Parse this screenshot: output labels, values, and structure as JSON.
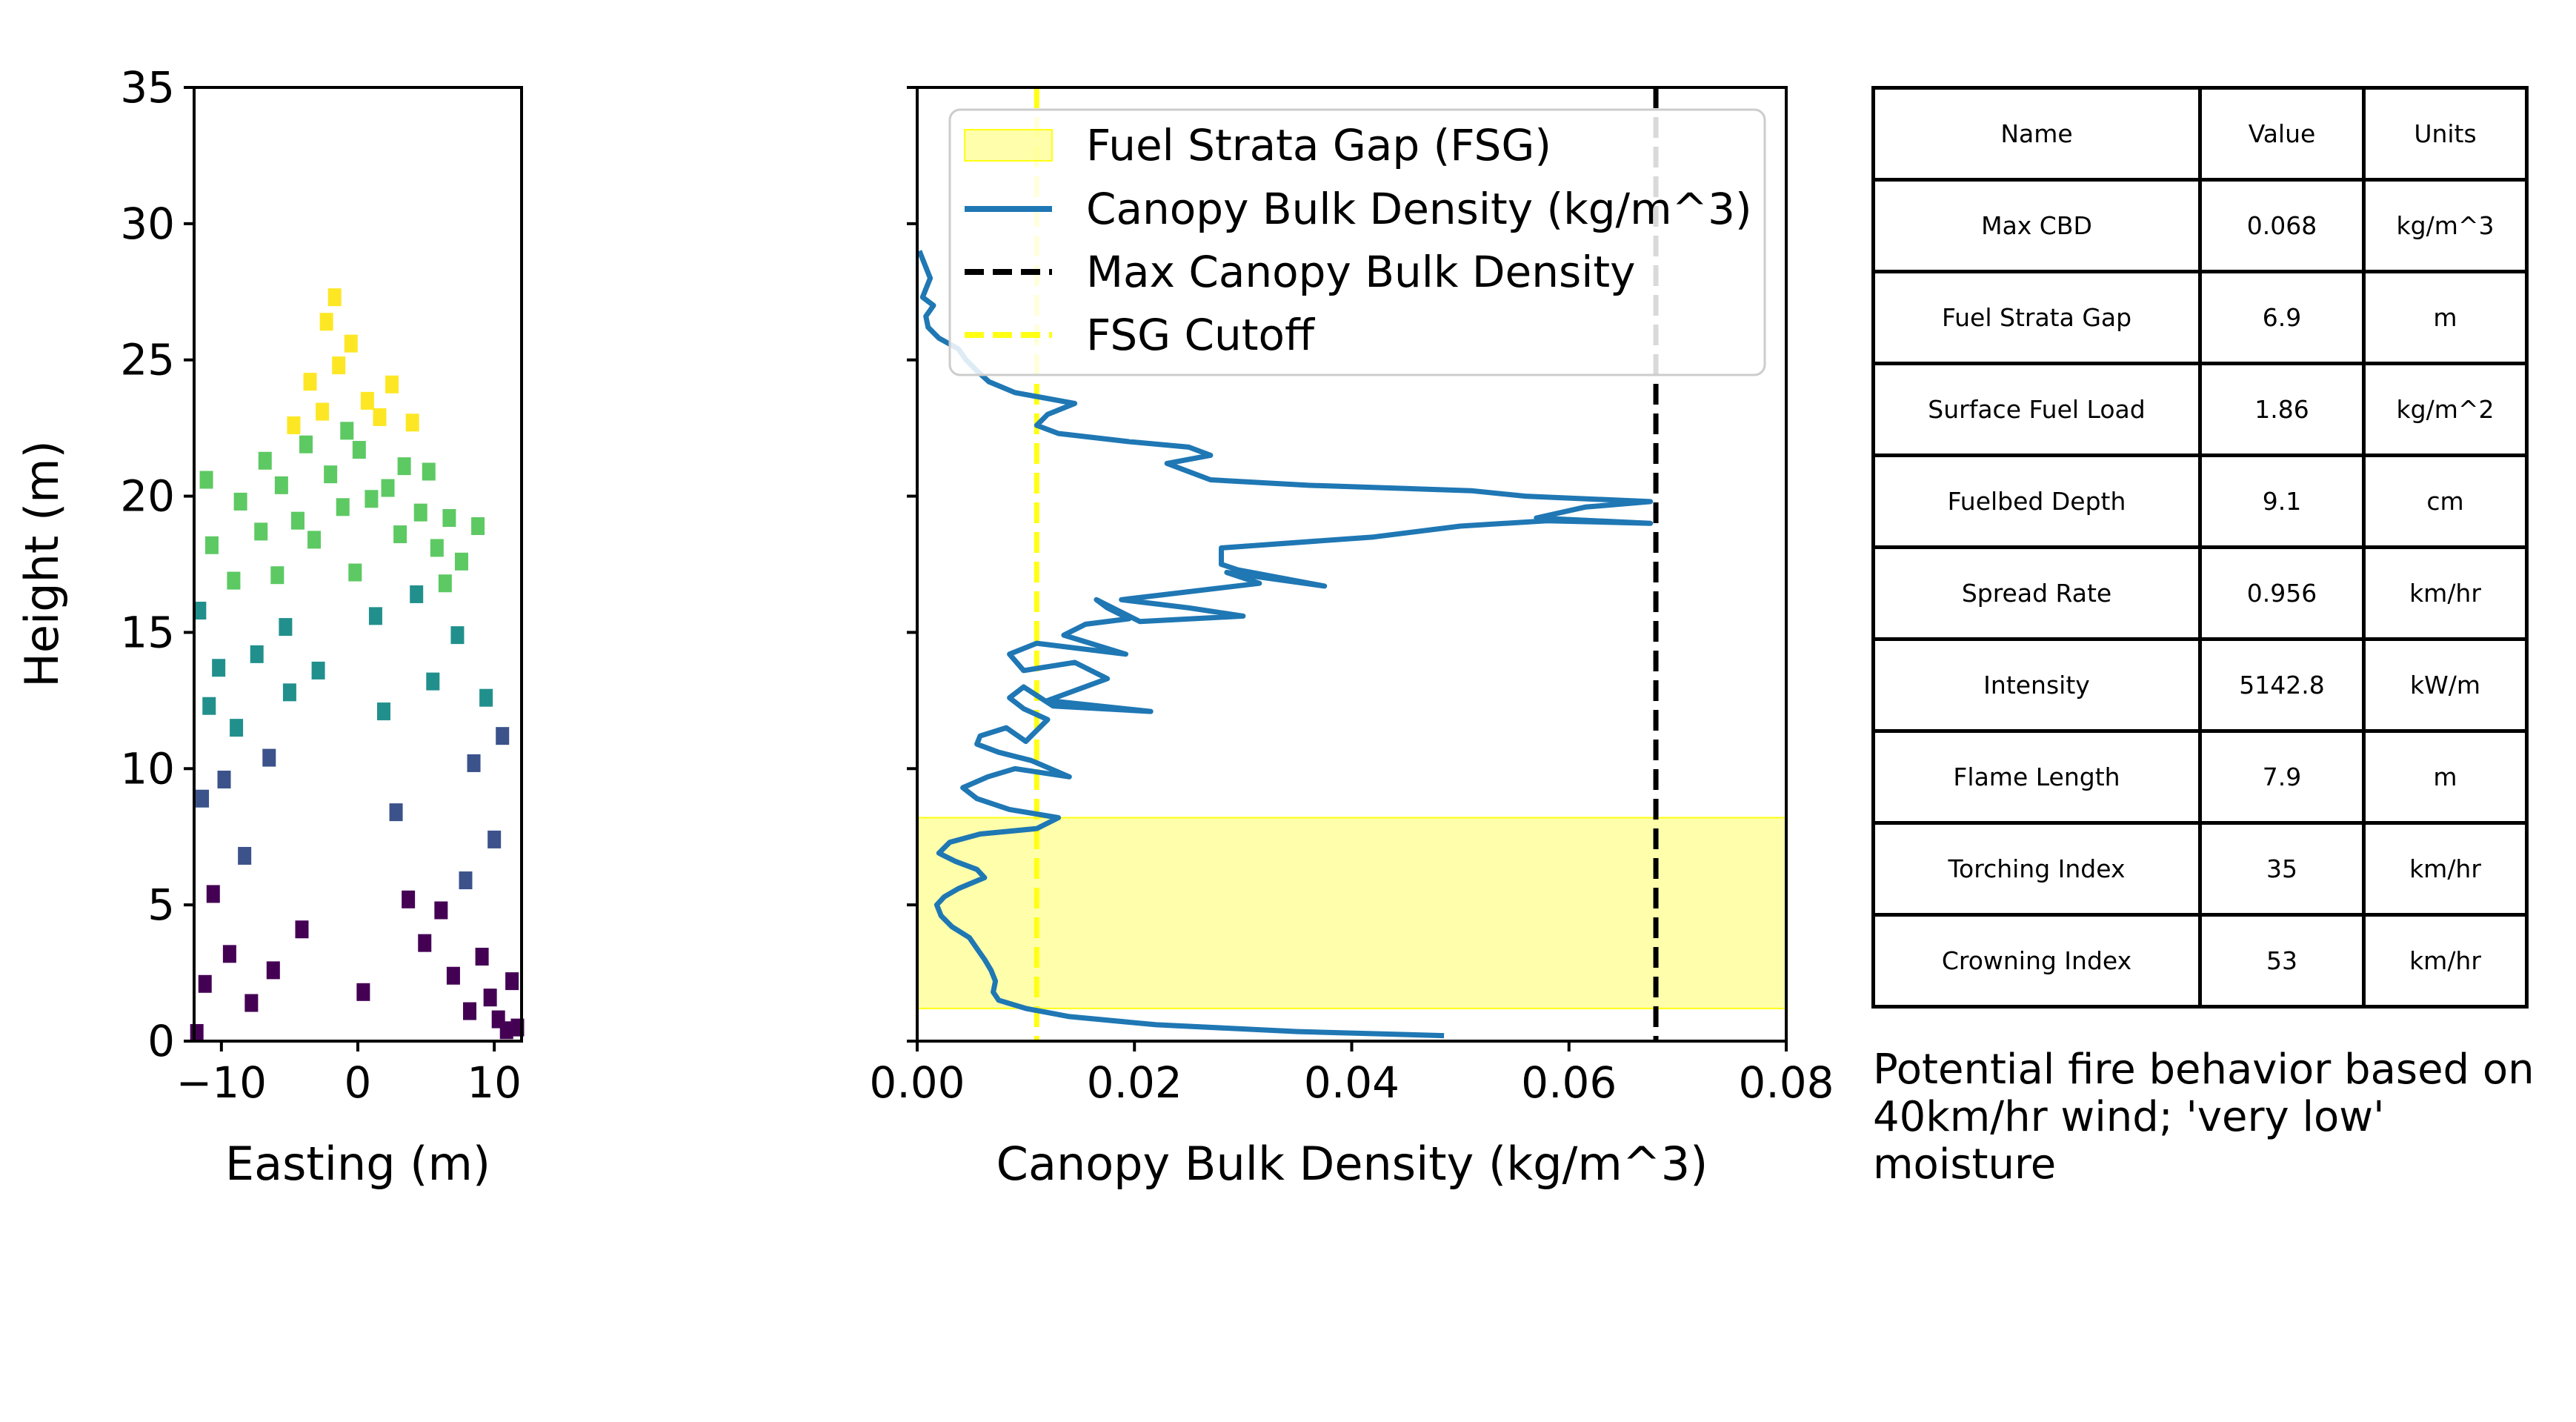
{
  "colors": {
    "cbd_line": "#1f77b4",
    "max_line": "#000000",
    "fsg_cutoff": "#ffff14",
    "fsg_fill": "#ffff66",
    "viridis": [
      "#440154",
      "#3b528b",
      "#21908d",
      "#5dc963",
      "#fde725"
    ]
  },
  "chart_data": [
    {
      "type": "scatter",
      "xlabel": "Easting (m)",
      "ylabel": "Height (m)",
      "xlim": [
        -12,
        12
      ],
      "ylim": [
        0,
        35
      ],
      "xticks": [
        -10,
        0,
        10
      ],
      "xtick_labels": [
        "−10",
        "0",
        "10"
      ],
      "yticks": [
        0,
        5,
        10,
        15,
        20,
        25,
        30,
        35
      ],
      "ytick_labels": [
        "0",
        "5",
        "10",
        "15",
        "20",
        "25",
        "30",
        "35"
      ],
      "colormap": "viridis",
      "color_by": "height",
      "points": [
        {
          "x": -11.8,
          "y": 0.3
        },
        {
          "x": -11.2,
          "y": 2.1
        },
        {
          "x": -10.6,
          "y": 5.4
        },
        {
          "x": -11.4,
          "y": 8.9
        },
        {
          "x": -10.9,
          "y": 12.3
        },
        {
          "x": -11.6,
          "y": 15.8
        },
        {
          "x": -10.7,
          "y": 18.2
        },
        {
          "x": -11.1,
          "y": 20.6
        },
        {
          "x": -10.2,
          "y": 13.7
        },
        {
          "x": -9.8,
          "y": 9.6
        },
        {
          "x": -9.4,
          "y": 3.2
        },
        {
          "x": -9.1,
          "y": 16.9
        },
        {
          "x": -8.6,
          "y": 19.8
        },
        {
          "x": -8.9,
          "y": 11.5
        },
        {
          "x": -8.3,
          "y": 6.8
        },
        {
          "x": -7.8,
          "y": 1.4
        },
        {
          "x": -7.4,
          "y": 14.2
        },
        {
          "x": -7.1,
          "y": 18.7
        },
        {
          "x": -6.8,
          "y": 21.3
        },
        {
          "x": -6.5,
          "y": 10.4
        },
        {
          "x": -6.2,
          "y": 2.6
        },
        {
          "x": -5.9,
          "y": 17.1
        },
        {
          "x": -5.6,
          "y": 20.4
        },
        {
          "x": -5.3,
          "y": 15.2
        },
        {
          "x": -5.0,
          "y": 12.8
        },
        {
          "x": -4.7,
          "y": 22.6
        },
        {
          "x": -4.4,
          "y": 19.1
        },
        {
          "x": -4.1,
          "y": 4.1
        },
        {
          "x": -3.8,
          "y": 21.9
        },
        {
          "x": -3.5,
          "y": 24.2
        },
        {
          "x": -3.2,
          "y": 18.4
        },
        {
          "x": -2.9,
          "y": 13.6
        },
        {
          "x": -2.6,
          "y": 23.1
        },
        {
          "x": -2.3,
          "y": 26.4
        },
        {
          "x": -2.0,
          "y": 20.8
        },
        {
          "x": -1.7,
          "y": 27.3
        },
        {
          "x": -1.4,
          "y": 24.8
        },
        {
          "x": -1.1,
          "y": 19.6
        },
        {
          "x": -0.8,
          "y": 22.4
        },
        {
          "x": -0.5,
          "y": 25.6
        },
        {
          "x": -0.2,
          "y": 17.2
        },
        {
          "x": 0.1,
          "y": 21.7
        },
        {
          "x": 0.4,
          "y": 1.8
        },
        {
          "x": 0.7,
          "y": 23.5
        },
        {
          "x": 1.0,
          "y": 19.9
        },
        {
          "x": 1.3,
          "y": 15.6
        },
        {
          "x": 1.6,
          "y": 22.9
        },
        {
          "x": 1.9,
          "y": 12.1
        },
        {
          "x": 2.2,
          "y": 20.3
        },
        {
          "x": 2.5,
          "y": 24.1
        },
        {
          "x": 2.8,
          "y": 8.4
        },
        {
          "x": 3.1,
          "y": 18.6
        },
        {
          "x": 3.4,
          "y": 21.1
        },
        {
          "x": 3.7,
          "y": 5.2
        },
        {
          "x": 4.0,
          "y": 22.7
        },
        {
          "x": 4.3,
          "y": 16.4
        },
        {
          "x": 4.6,
          "y": 19.4
        },
        {
          "x": 4.9,
          "y": 3.6
        },
        {
          "x": 5.2,
          "y": 20.9
        },
        {
          "x": 5.5,
          "y": 13.2
        },
        {
          "x": 5.8,
          "y": 18.1
        },
        {
          "x": 6.1,
          "y": 4.8
        },
        {
          "x": 6.4,
          "y": 16.8
        },
        {
          "x": 6.7,
          "y": 19.2
        },
        {
          "x": 7.0,
          "y": 2.4
        },
        {
          "x": 7.3,
          "y": 14.9
        },
        {
          "x": 7.6,
          "y": 17.6
        },
        {
          "x": 7.9,
          "y": 5.9
        },
        {
          "x": 8.2,
          "y": 1.1
        },
        {
          "x": 8.5,
          "y": 10.2
        },
        {
          "x": 8.8,
          "y": 18.9
        },
        {
          "x": 9.1,
          "y": 3.1
        },
        {
          "x": 9.4,
          "y": 12.6
        },
        {
          "x": 9.7,
          "y": 1.6
        },
        {
          "x": 10.0,
          "y": 7.4
        },
        {
          "x": 10.3,
          "y": 0.8
        },
        {
          "x": 10.6,
          "y": 11.2
        },
        {
          "x": 10.9,
          "y": 0.4
        },
        {
          "x": 11.3,
          "y": 2.2
        },
        {
          "x": 11.7,
          "y": 0.5
        }
      ]
    },
    {
      "type": "line",
      "xlabel": "Canopy Bulk Density (kg/m^3)",
      "ylabel": "",
      "xlim": [
        0.0,
        0.08
      ],
      "ylim": [
        0,
        35
      ],
      "xticks": [
        0.0,
        0.02,
        0.04,
        0.06,
        0.08
      ],
      "xtick_labels": [
        "0.00",
        "0.02",
        "0.04",
        "0.06",
        "0.08"
      ],
      "yticks": [
        0,
        5,
        10,
        15,
        20,
        25,
        30,
        35
      ],
      "legend_position": "upper-left",
      "series": [
        {
          "name": "Canopy Bulk Density (kg/m^3)",
          "x": [
            0.0485,
            0.035,
            0.022,
            0.014,
            0.01,
            0.0075,
            0.007,
            0.0072,
            0.0068,
            0.0062,
            0.0055,
            0.0048,
            0.0032,
            0.0022,
            0.0018,
            0.0025,
            0.0038,
            0.0062,
            0.0055,
            0.0035,
            0.002,
            0.003,
            0.0058,
            0.011,
            0.013,
            0.0085,
            0.0055,
            0.0042,
            0.0065,
            0.009,
            0.014,
            0.0105,
            0.0075,
            0.0055,
            0.0058,
            0.0082,
            0.01,
            0.012,
            0.0098,
            0.0085,
            0.0098,
            0.0125,
            0.0215,
            0.012,
            0.0175,
            0.0145,
            0.0098,
            0.0085,
            0.011,
            0.0192,
            0.0135,
            0.0155,
            0.0195,
            0.0175,
            0.0165,
            0.0205,
            0.03,
            0.025,
            0.0188,
            0.0315,
            0.0285,
            0.0375,
            0.0295,
            0.028,
            0.028,
            0.042,
            0.05,
            0.058,
            0.0675,
            0.057,
            0.0615,
            0.0675,
            0.056,
            0.051,
            0.036,
            0.027,
            0.023,
            0.027,
            0.025,
            0.0195,
            0.013,
            0.011,
            0.012,
            0.0145,
            0.009,
            0.0066,
            0.0055,
            0.0045,
            0.0038,
            0.002,
            0.001,
            0.0008,
            0.0015,
            0.0005,
            0.0012,
            0.0002
          ],
          "y": [
            0.2,
            0.35,
            0.6,
            0.9,
            1.2,
            1.5,
            1.8,
            2.2,
            2.6,
            3.0,
            3.4,
            3.8,
            4.2,
            4.6,
            5.0,
            5.3,
            5.6,
            6.0,
            6.3,
            6.6,
            6.9,
            7.3,
            7.6,
            7.8,
            8.2,
            8.5,
            8.9,
            9.3,
            9.7,
            10.0,
            9.7,
            10.3,
            10.6,
            10.9,
            11.2,
            11.5,
            11.0,
            11.8,
            12.2,
            12.6,
            13.0,
            12.3,
            12.1,
            12.5,
            13.3,
            13.9,
            13.6,
            14.2,
            14.6,
            14.2,
            14.9,
            15.3,
            15.5,
            15.9,
            16.2,
            15.4,
            15.6,
            15.9,
            16.2,
            16.8,
            17.2,
            16.7,
            17.3,
            17.5,
            18.1,
            18.5,
            18.9,
            19.1,
            19.0,
            19.2,
            19.6,
            19.8,
            20.0,
            20.2,
            20.4,
            20.6,
            21.2,
            21.5,
            21.8,
            22.0,
            22.3,
            22.6,
            23.0,
            23.4,
            23.8,
            24.2,
            24.6,
            25.0,
            25.4,
            25.8,
            26.2,
            26.6,
            27.0,
            27.3,
            28.0,
            29.0
          ]
        },
        {
          "name": "Max Canopy Bulk Density",
          "x_value": 0.068
        },
        {
          "name": "FSG Cutoff",
          "x_value": 0.011
        },
        {
          "name": "Fuel Strata Gap (FSG)",
          "y_range": [
            1.2,
            8.2
          ]
        }
      ],
      "legend": [
        "Fuel Strata Gap (FSG)",
        "Canopy Bulk Density (kg/m^3)",
        "Max Canopy Bulk Density",
        "FSG Cutoff"
      ]
    },
    {
      "type": "table",
      "header": [
        "Name",
        "Value",
        "Units"
      ],
      "rows": [
        [
          "Max CBD",
          "0.068",
          "kg/m^3"
        ],
        [
          "Fuel Strata Gap",
          "6.9",
          "m"
        ],
        [
          "Surface Fuel Load",
          "1.86",
          "kg/m^2"
        ],
        [
          "Fuelbed Depth",
          "9.1",
          "cm"
        ],
        [
          "Spread Rate",
          "0.956",
          "km/hr"
        ],
        [
          "Intensity",
          "5142.8",
          "kW/m"
        ],
        [
          "Flame Length",
          "7.9",
          "m"
        ],
        [
          "Torching Index",
          "35",
          "km/hr"
        ],
        [
          "Crowning Index",
          "53",
          "km/hr"
        ]
      ],
      "caption": "Potential fire behavior based on\n40km/hr wind; 'very low' moisture"
    }
  ]
}
